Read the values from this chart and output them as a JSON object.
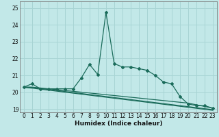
{
  "title": "",
  "xlabel": "Humidex (Indice chaleur)",
  "bg_color": "#c2e8e8",
  "grid_color": "#a8d4d4",
  "line_color": "#1a6b5a",
  "xlim": [
    -0.5,
    23.5
  ],
  "ylim": [
    18.8,
    25.4
  ],
  "yticks": [
    19,
    20,
    21,
    22,
    23,
    24,
    25
  ],
  "xticks": [
    0,
    1,
    2,
    3,
    4,
    5,
    6,
    7,
    8,
    9,
    10,
    11,
    12,
    13,
    14,
    15,
    16,
    17,
    18,
    19,
    20,
    21,
    22,
    23
  ],
  "series1_x": [
    0,
    1,
    2,
    3,
    4,
    5,
    6,
    7,
    8,
    9,
    10,
    11,
    12,
    13,
    14,
    15,
    16,
    17,
    18,
    19,
    20,
    21,
    22,
    23
  ],
  "series1_y": [
    20.3,
    20.5,
    20.2,
    20.2,
    20.2,
    20.2,
    20.2,
    20.85,
    21.65,
    21.05,
    24.75,
    21.7,
    21.5,
    21.5,
    21.4,
    21.3,
    21.0,
    20.6,
    20.5,
    19.75,
    19.3,
    19.2,
    19.2,
    19.05
  ],
  "series1_marker_x": [
    0,
    1,
    2,
    3,
    4,
    5,
    6,
    7,
    8,
    9,
    10,
    11,
    12,
    13,
    14,
    15,
    16,
    17,
    18,
    19,
    20,
    21,
    22,
    23
  ],
  "series1_marker_y": [
    20.3,
    20.5,
    20.2,
    20.2,
    20.2,
    20.2,
    20.2,
    20.85,
    21.65,
    21.05,
    24.75,
    21.7,
    21.5,
    21.5,
    21.4,
    21.3,
    21.0,
    20.6,
    20.5,
    19.75,
    19.3,
    19.2,
    19.2,
    19.05
  ],
  "series2_x": [
    0,
    1,
    2,
    3,
    4,
    5,
    6,
    7,
    8,
    9,
    10,
    11,
    12,
    13,
    14,
    15,
    16,
    17,
    18,
    19,
    20,
    21,
    22,
    23
  ],
  "series2_y": [
    20.3,
    20.3,
    20.25,
    20.2,
    20.15,
    20.1,
    20.05,
    20.0,
    19.95,
    19.9,
    19.85,
    19.8,
    19.75,
    19.7,
    19.65,
    19.6,
    19.55,
    19.5,
    19.45,
    19.4,
    19.35,
    19.25,
    19.15,
    19.05
  ],
  "series3_x": [
    0,
    1,
    2,
    3,
    4,
    5,
    6,
    7,
    8,
    9,
    10,
    11,
    12,
    13,
    14,
    15,
    16,
    17,
    18,
    19,
    20,
    21,
    22,
    23
  ],
  "series3_y": [
    20.3,
    20.28,
    20.22,
    20.16,
    20.1,
    20.04,
    19.98,
    19.92,
    19.86,
    19.8,
    19.74,
    19.68,
    19.62,
    19.56,
    19.5,
    19.44,
    19.38,
    19.32,
    19.26,
    19.2,
    19.14,
    19.08,
    19.02,
    18.96
  ],
  "series4_x": [
    0,
    1,
    2,
    3,
    4,
    5,
    6,
    7,
    8,
    9,
    10,
    11,
    12,
    13,
    14,
    15,
    16,
    17,
    18,
    19,
    20,
    21,
    22,
    23
  ],
  "series4_y": [
    20.28,
    20.24,
    20.18,
    20.12,
    20.06,
    20.0,
    19.94,
    19.88,
    19.82,
    19.76,
    19.7,
    19.64,
    19.58,
    19.52,
    19.46,
    19.4,
    19.34,
    19.28,
    19.22,
    19.16,
    19.1,
    19.04,
    18.98,
    18.92
  ]
}
